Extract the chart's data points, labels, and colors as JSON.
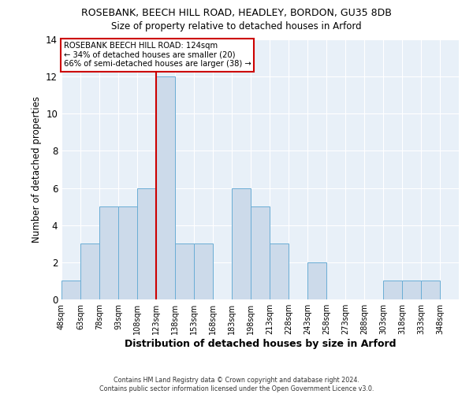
{
  "title": "ROSEBANK, BEECH HILL ROAD, HEADLEY, BORDON, GU35 8DB",
  "subtitle": "Size of property relative to detached houses in Arford",
  "xlabel": "Distribution of detached houses by size in Arford",
  "ylabel": "Number of detached properties",
  "bin_edges": [
    48,
    63,
    78,
    93,
    108,
    123,
    138,
    153,
    168,
    183,
    198,
    213,
    228,
    243,
    258,
    273,
    288,
    303,
    318,
    333,
    348
  ],
  "counts": [
    1,
    3,
    5,
    5,
    6,
    12,
    3,
    3,
    0,
    6,
    5,
    3,
    0,
    2,
    0,
    0,
    0,
    1,
    1,
    1
  ],
  "bar_color": "#ccdaea",
  "bar_edgecolor": "#6aadd5",
  "ref_line_x": 123,
  "ref_line_color": "#cc0000",
  "annotation_box_edgecolor": "#cc0000",
  "annotation_text_line1": "ROSEBANK BEECH HILL ROAD: 124sqm",
  "annotation_text_line2": "← 34% of detached houses are smaller (20)",
  "annotation_text_line3": "66% of semi-detached houses are larger (38) →",
  "ylim": [
    0,
    14
  ],
  "yticks": [
    0,
    2,
    4,
    6,
    8,
    10,
    12,
    14
  ],
  "tick_labels": [
    "48sqm",
    "63sqm",
    "78sqm",
    "93sqm",
    "108sqm",
    "123sqm",
    "138sqm",
    "153sqm",
    "168sqm",
    "183sqm",
    "198sqm",
    "213sqm",
    "228sqm",
    "243sqm",
    "258sqm",
    "273sqm",
    "288sqm",
    "303sqm",
    "318sqm",
    "333sqm",
    "348sqm"
  ],
  "footer_line1": "Contains HM Land Registry data © Crown copyright and database right 2024.",
  "footer_line2": "Contains public sector information licensed under the Open Government Licence v3.0.",
  "background_color": "#ffffff",
  "plot_bg_color": "#e8f0f8"
}
